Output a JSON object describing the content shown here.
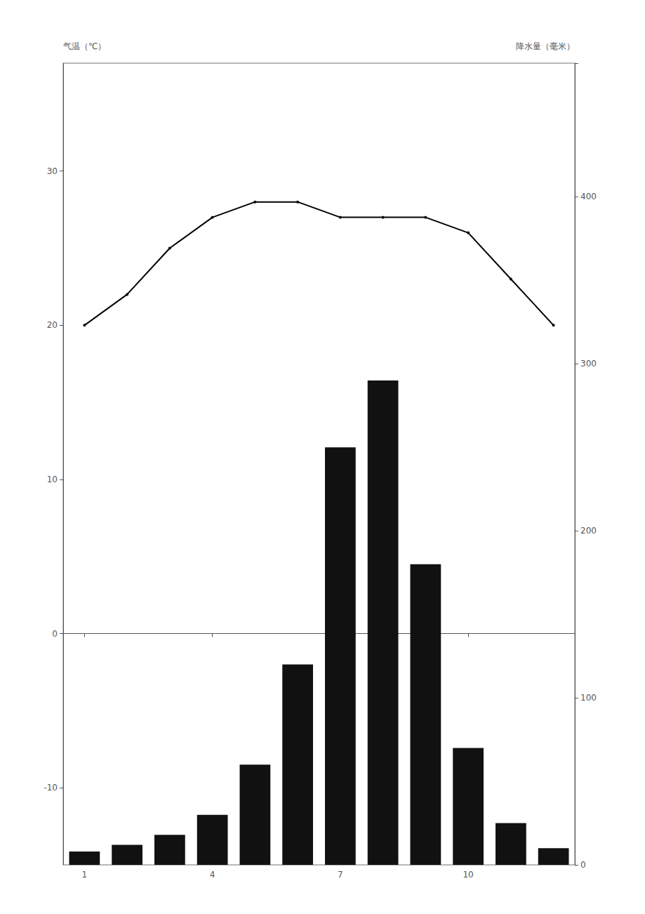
{
  "chart_data": {
    "type": "bar",
    "ylabel": "气温（℃）",
    "y2label": "降水量（毫米）",
    "x": [
      1,
      2,
      3,
      4,
      5,
      6,
      7,
      8,
      9,
      10,
      11,
      12
    ],
    "xlim": [
      0.5,
      12.5
    ],
    "xticks": [
      1,
      4,
      7,
      10
    ],
    "ylim": [
      -15,
      37
    ],
    "yticks": [
      -10,
      0,
      10,
      20,
      30
    ],
    "y2lim": [
      0,
      480
    ],
    "y2ticks": [
      0,
      100,
      200,
      300,
      400
    ],
    "grid": false,
    "series": [
      {
        "type": "bar",
        "axis": "y2",
        "color": "#111111",
        "values": [
          8,
          12,
          18,
          30,
          60,
          120,
          250,
          290,
          180,
          70,
          25,
          10
        ]
      },
      {
        "type": "line",
        "color": "#000000",
        "marker": "circle",
        "line_style": "solid",
        "values": [
          20,
          22,
          25,
          27,
          28,
          28,
          27,
          27,
          27,
          26,
          23,
          20
        ]
      }
    ]
  }
}
